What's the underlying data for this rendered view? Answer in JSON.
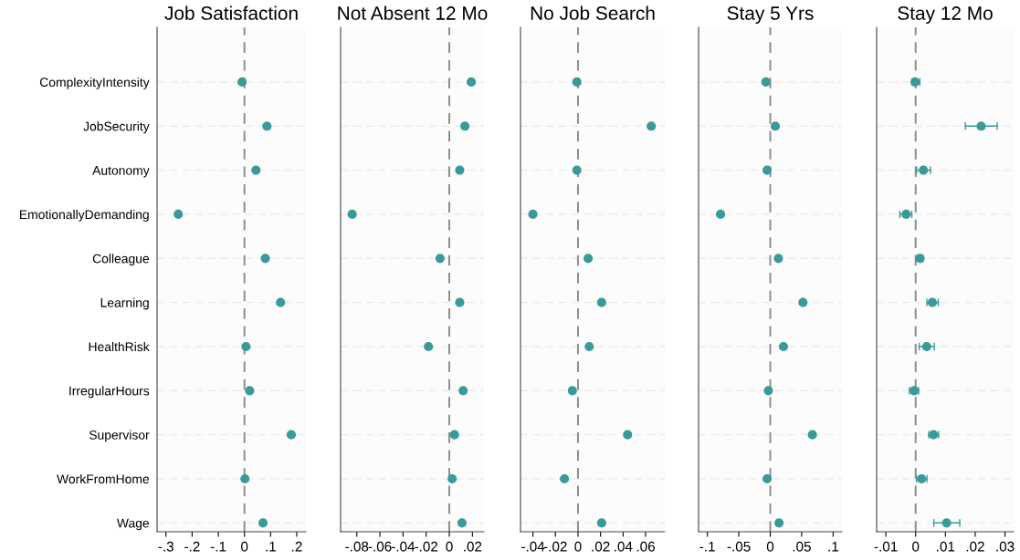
{
  "chart_data": [
    {
      "type": "scatter",
      "orientation": "horizontal",
      "title": "Job Satisfaction",
      "categories": [
        "ComplexityIntensity",
        "JobSecurity",
        "Autonomy",
        "EmotionallyDemanding",
        "Colleague",
        "Learning",
        "HealthRisk",
        "IrregularHours",
        "Supervisor",
        "WorkFromHome",
        "Wage"
      ],
      "series": [
        {
          "color": "#3a9a9a",
          "values": [
            -0.009,
            0.086,
            0.044,
            -0.253,
            0.08,
            0.138,
            0.006,
            0.02,
            0.179,
            0.002,
            0.071
          ]
        }
      ],
      "xlim": [
        -0.334,
        0.235
      ],
      "xticks": [
        {
          "value": -0.3,
          "label": "-.3"
        },
        {
          "value": -0.2,
          "label": "-.2"
        },
        {
          "value": -0.1,
          "label": "-.1"
        },
        0,
        {
          "value": 0.1,
          "label": ".1"
        },
        {
          "value": 0.2,
          "label": ".2"
        }
      ],
      "grid": "y",
      "marker": "circle",
      "ref_lines": [
        {
          "axis": "x",
          "value": 0,
          "color": "#8c8c8c",
          "line_style": "dashed"
        }
      ]
    },
    {
      "type": "scatter",
      "orientation": "horizontal",
      "title": "Not Absent 12 Mo",
      "categories": [
        null,
        null,
        null,
        null,
        null,
        null,
        null,
        null,
        null,
        null,
        null
      ],
      "series": [
        {
          "color": "#3a9a9a",
          "values": [
            0.019,
            0.0135,
            0.009,
            -0.084,
            -0.008,
            0.009,
            -0.018,
            0.012,
            0.0045,
            0.0025,
            0.011
          ]
        }
      ],
      "xlim": [
        -0.094,
        0.03
      ],
      "xticks": [
        {
          "value": -0.08,
          "label": "-.08"
        },
        {
          "value": -0.06,
          "label": "-.06"
        },
        {
          "value": -0.04,
          "label": "-.04"
        },
        {
          "value": -0.02,
          "label": "-.02"
        },
        0,
        {
          "value": 0.02,
          "label": ".02"
        }
      ],
      "grid": "y",
      "marker": "circle",
      "tick_labels": "x",
      "ref_lines": [
        {
          "axis": "x",
          "value": 0,
          "color": "#8c8c8c",
          "line_style": "dashed"
        }
      ]
    },
    {
      "type": "scatter",
      "orientation": "horizontal",
      "title": "No Job Search",
      "categories": [
        null,
        null,
        null,
        null,
        null,
        null,
        null,
        null,
        null,
        null,
        null
      ],
      "series": [
        {
          "color": "#3a9a9a",
          "values": [
            -0.001,
            0.065,
            -0.001,
            -0.04,
            0.009,
            0.021,
            0.01,
            -0.005,
            0.044,
            -0.012,
            0.021
          ]
        }
      ],
      "xlim": [
        -0.051,
        0.077
      ],
      "xticks": [
        {
          "value": -0.04,
          "label": "-.04"
        },
        {
          "value": -0.02,
          "label": "-.02"
        },
        0,
        {
          "value": 0.02,
          "label": ".02"
        },
        {
          "value": 0.04,
          "label": ".04"
        },
        {
          "value": 0.06,
          "label": ".06"
        }
      ],
      "grid": "y",
      "marker": "circle",
      "tick_labels": "x",
      "ref_lines": [
        {
          "axis": "x",
          "value": 0,
          "color": "#8c8c8c",
          "line_style": "dashed"
        }
      ]
    },
    {
      "type": "scatter",
      "orientation": "horizontal",
      "title": "Stay 5 Yrs",
      "categories": [
        null,
        null,
        null,
        null,
        null,
        null,
        null,
        null,
        null,
        null,
        null
      ],
      "series": [
        {
          "color": "#3a9a9a",
          "values": [
            -0.007,
            0.008,
            -0.005,
            -0.079,
            0.013,
            0.052,
            0.021,
            -0.003,
            0.067,
            -0.005,
            0.014
          ]
        }
      ],
      "xlim": [
        -0.114,
        0.114
      ],
      "xticks": [
        {
          "value": -0.1,
          "label": "-.1"
        },
        {
          "value": -0.05,
          "label": "-.05"
        },
        0,
        {
          "value": 0.05,
          "label": ".05"
        },
        {
          "value": 0.1,
          "label": ".1"
        }
      ],
      "grid": "y",
      "marker": "circle",
      "tick_labels": "x",
      "ref_lines": [
        {
          "axis": "x",
          "value": 0,
          "color": "#8c8c8c",
          "line_style": "dashed"
        }
      ]
    },
    {
      "type": "scatter",
      "orientation": "horizontal",
      "title": "Stay 12 Mo",
      "categories": [
        null,
        null,
        null,
        null,
        null,
        null,
        null,
        null,
        null,
        null,
        null
      ],
      "color": "#3a9a9a",
      "values": [
        -0.0002,
        0.022,
        0.0026,
        -0.0032,
        0.0015,
        0.0056,
        0.0037,
        -0.0005,
        0.006,
        0.002,
        0.0104
      ],
      "errors": [
        [
          -0.0012,
          0.0014
        ],
        [
          0.0167,
          0.0274
        ],
        [
          0.0003,
          0.005
        ],
        [
          -0.0053,
          -0.0013
        ],
        [
          0.0005,
          0.0024
        ],
        [
          0.0038,
          0.0076
        ],
        [
          0.0012,
          0.0063
        ],
        [
          -0.0021,
          0.001
        ],
        [
          0.0044,
          0.0077
        ],
        [
          0.0003,
          0.0038
        ],
        [
          0.0061,
          0.0148
        ]
      ],
      "xlim": [
        -0.0131,
        0.0329
      ],
      "xticks": [
        {
          "value": -0.01,
          "label": "-.01"
        },
        0,
        {
          "value": 0.01,
          "label": ".01"
        },
        {
          "value": 0.02,
          "label": ".02"
        },
        {
          "value": 0.03,
          "label": ".03"
        }
      ],
      "grid": "y",
      "marker": "circle",
      "tick_labels": "x",
      "ref_lines": [
        {
          "axis": "x",
          "value": 0,
          "color": "#8c8c8c",
          "line_style": "dashed"
        }
      ]
    }
  ]
}
